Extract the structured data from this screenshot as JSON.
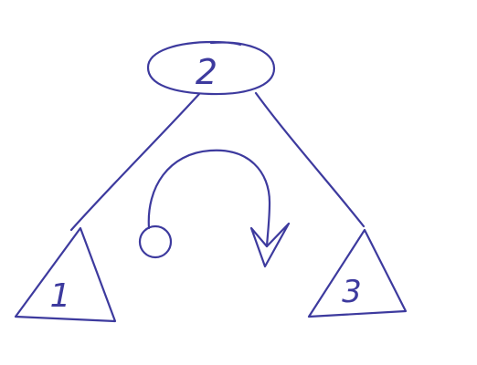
{
  "diagram": {
    "ink_color": "#3d3a9e",
    "background_color": "#ffffff",
    "root_node": {
      "label": "2"
    },
    "left_subtree": {
      "label": "1"
    },
    "right_subtree": {
      "label": "3"
    },
    "rotation_arrow": {
      "start_marker": "open-circle",
      "end_marker": "arrowhead-down"
    }
  }
}
